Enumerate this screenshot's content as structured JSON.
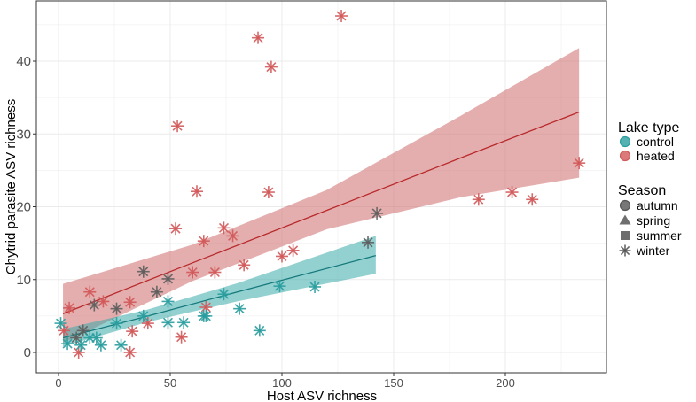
{
  "chart_data": {
    "type": "scatter",
    "xlabel": "Host ASV richness",
    "ylabel": "Chytrid parasite ASV richness",
    "xlim": [
      -10,
      245
    ],
    "ylim": [
      -3,
      48
    ],
    "xticks": [
      "0",
      "50",
      "100",
      "150",
      "200"
    ],
    "xtick_values": [
      0,
      50,
      100,
      150,
      200
    ],
    "yticks": [
      "0",
      "10",
      "20",
      "30",
      "40"
    ],
    "ytick_values": [
      0,
      10,
      20,
      30,
      40
    ],
    "grid": true,
    "legend": {
      "placement": "right",
      "lake_title": "Lake type",
      "lake_items": [
        {
          "label": "control",
          "color": "#2a9d9f"
        },
        {
          "label": "heated",
          "color": "#d2595a"
        }
      ],
      "season_title": "Season",
      "season_items": [
        {
          "label": "autumn",
          "shape": "circle"
        },
        {
          "label": "spring",
          "shape": "triangle"
        },
        {
          "label": "summer",
          "shape": "square"
        },
        {
          "label": "winter",
          "shape": "star"
        }
      ]
    },
    "colors": {
      "control": "#2a9d9f",
      "heated": "#d2595a",
      "other": "#5e5e5e",
      "control_band": "#3aa9a9",
      "heated_band": "#cf6c6c"
    },
    "fits": [
      {
        "lake": "heated",
        "x": [
          2,
          60,
          120,
          180,
          233
        ],
        "fit": [
          5.3,
          12.3,
          19.5,
          26.7,
          33
        ],
        "lower": [
          1.3,
          9.8,
          16.9,
          21.3,
          24
        ],
        "upper": [
          9.4,
          14.8,
          22.3,
          32.5,
          41.8
        ]
      },
      {
        "lake": "control",
        "x": [
          2,
          40,
          80,
          142
        ],
        "fit": [
          2,
          5,
          8.3,
          13.3
        ],
        "lower": [
          0.8,
          4.2,
          7,
          10.8
        ],
        "upper": [
          3.2,
          5.9,
          9.5,
          16
        ]
      }
    ],
    "points": [
      {
        "lake": "heated",
        "season": "autumn",
        "x": 126.6,
        "y": 46.2
      },
      {
        "lake": "heated",
        "season": "autumn",
        "x": 89.3,
        "y": 43.2
      },
      {
        "lake": "heated",
        "season": "autumn",
        "x": 95.2,
        "y": 39.2
      },
      {
        "lake": "heated",
        "season": "autumn",
        "x": 53.2,
        "y": 31.1
      },
      {
        "lake": "heated",
        "season": "autumn",
        "x": 61.9,
        "y": 22.1
      },
      {
        "lake": "heated",
        "season": "autumn",
        "x": 52.4,
        "y": 17
      },
      {
        "lake": "heated",
        "season": "autumn",
        "x": 32,
        "y": 6.9
      },
      {
        "lake": "heated",
        "season": "autumn",
        "x": 33,
        "y": 2.9
      },
      {
        "lake": "heated",
        "season": "autumn",
        "x": 55,
        "y": 2.1
      },
      {
        "lake": "heated",
        "season": "autumn",
        "x": 32,
        "y": 0
      },
      {
        "lake": "heated",
        "season": "autumn",
        "x": 4.8,
        "y": 6.1
      },
      {
        "lake": "heated",
        "season": "autumn",
        "x": 2.4,
        "y": 3
      },
      {
        "lake": "heated",
        "season": "spring",
        "x": 65,
        "y": 15.3
      },
      {
        "lake": "heated",
        "season": "spring",
        "x": 74,
        "y": 17.1
      },
      {
        "lake": "heated",
        "season": "spring",
        "x": 100,
        "y": 13.2
      },
      {
        "lake": "heated",
        "season": "spring",
        "x": 14,
        "y": 8.3
      },
      {
        "lake": "heated",
        "season": "spring",
        "x": 66,
        "y": 6.2
      },
      {
        "lake": "heated",
        "season": "summer",
        "x": 233,
        "y": 26
      },
      {
        "lake": "heated",
        "season": "summer",
        "x": 203,
        "y": 22
      },
      {
        "lake": "heated",
        "season": "summer",
        "x": 188,
        "y": 21
      },
      {
        "lake": "heated",
        "season": "summer",
        "x": 212,
        "y": 21
      },
      {
        "lake": "heated",
        "season": "summer",
        "x": 70,
        "y": 11
      },
      {
        "lake": "heated",
        "season": "winter",
        "x": 94,
        "y": 22
      },
      {
        "lake": "heated",
        "season": "winter",
        "x": 78,
        "y": 16
      },
      {
        "lake": "heated",
        "season": "winter",
        "x": 60,
        "y": 11
      },
      {
        "lake": "heated",
        "season": "winter",
        "x": 83,
        "y": 12
      },
      {
        "lake": "heated",
        "season": "winter",
        "x": 105,
        "y": 14
      },
      {
        "lake": "heated",
        "season": "winter",
        "x": 20,
        "y": 7
      },
      {
        "lake": "heated",
        "season": "winter",
        "x": 40,
        "y": 4
      },
      {
        "lake": "heated",
        "season": "winter",
        "x": 9,
        "y": 0
      },
      {
        "lake": "other",
        "season": "autumn",
        "x": 38,
        "y": 11.1
      },
      {
        "lake": "other",
        "season": "autumn",
        "x": 26,
        "y": 6
      },
      {
        "lake": "other",
        "season": "autumn",
        "x": 8,
        "y": 2
      },
      {
        "lake": "other",
        "season": "summer",
        "x": 142.5,
        "y": 19.1
      },
      {
        "lake": "other",
        "season": "summer",
        "x": 138.5,
        "y": 15.1
      },
      {
        "lake": "other",
        "season": "spring",
        "x": 49,
        "y": 10.1
      },
      {
        "lake": "other",
        "season": "spring",
        "x": 44,
        "y": 8.3
      },
      {
        "lake": "other",
        "season": "spring",
        "x": 16,
        "y": 6.5
      },
      {
        "lake": "other",
        "season": "spring",
        "x": 11,
        "y": 3
      },
      {
        "lake": "control",
        "season": "autumn",
        "x": 114.7,
        "y": 9
      },
      {
        "lake": "control",
        "season": "autumn",
        "x": 74,
        "y": 8
      },
      {
        "lake": "control",
        "season": "autumn",
        "x": 56,
        "y": 4.1
      },
      {
        "lake": "control",
        "season": "autumn",
        "x": 28,
        "y": 1
      },
      {
        "lake": "control",
        "season": "autumn",
        "x": 4,
        "y": 1.2
      },
      {
        "lake": "control",
        "season": "autumn",
        "x": 10,
        "y": 1
      },
      {
        "lake": "control",
        "season": "autumn",
        "x": 17,
        "y": 2
      },
      {
        "lake": "control",
        "season": "autumn",
        "x": 26,
        "y": 4
      },
      {
        "lake": "control",
        "season": "spring",
        "x": 99,
        "y": 9.1
      },
      {
        "lake": "control",
        "season": "spring",
        "x": 49,
        "y": 4.1
      },
      {
        "lake": "control",
        "season": "spring",
        "x": 66,
        "y": 5
      },
      {
        "lake": "control",
        "season": "summer",
        "x": 81,
        "y": 6
      },
      {
        "lake": "control",
        "season": "summer",
        "x": 90,
        "y": 3
      },
      {
        "lake": "control",
        "season": "winter",
        "x": 1,
        "y": 4
      },
      {
        "lake": "control",
        "season": "winter",
        "x": 19,
        "y": 1
      },
      {
        "lake": "control",
        "season": "winter",
        "x": 38,
        "y": 5
      },
      {
        "lake": "control",
        "season": "winter",
        "x": 49,
        "y": 7
      },
      {
        "lake": "control",
        "season": "winter",
        "x": 65,
        "y": 5
      },
      {
        "lake": "control",
        "season": "winter",
        "x": 14,
        "y": 2
      }
    ]
  }
}
